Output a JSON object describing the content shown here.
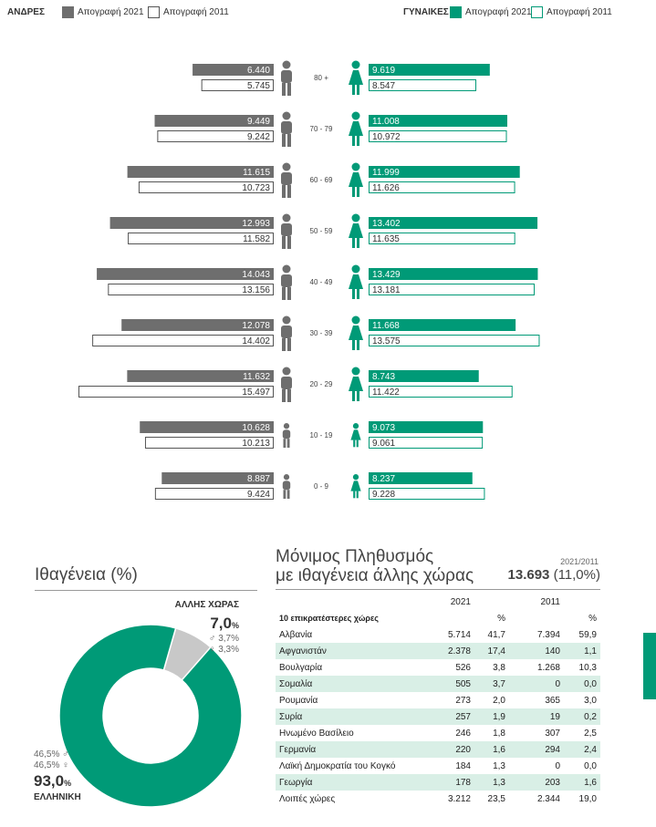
{
  "legend": {
    "men_label": "ΑΝΔΡΕΣ",
    "women_label": "ΓΥΝΑΙΚΕΣ",
    "census_2021": "Απογραφή 2021",
    "census_2011": "Απογραφή 2011",
    "icon": "square-swatch"
  },
  "colors": {
    "men_2021": "#6e6e6e",
    "women_2021": "#009a77",
    "outline_2011_men": "#555555",
    "outline_2011_women": "#009a77",
    "other_slice": "#c8c8c8",
    "table_shade": "#d9efe6",
    "side_tab": "#009a77"
  },
  "chart_data": [
    {
      "type": "bar",
      "orientation": "horizontal-pyramid",
      "categories": [
        "80 +",
        "70 - 79",
        "60 - 69",
        "50 - 59",
        "40 - 49",
        "30 - 39",
        "20 - 29",
        "10 - 19",
        "0 - 9"
      ],
      "series": [
        {
          "name": "ΑΝΔΡΕΣ Απογραφή 2021",
          "values": [
            6440,
            9449,
            11615,
            12993,
            14043,
            12078,
            11632,
            10628,
            8887
          ],
          "labels": [
            "6.440",
            "9.449",
            "11.615",
            "12.993",
            "14.043",
            "12.078",
            "11.632",
            "10.628",
            "8.887"
          ]
        },
        {
          "name": "ΑΝΔΡΕΣ Απογραφή 2011",
          "values": [
            5745,
            9242,
            10723,
            11582,
            13156,
            14402,
            15497,
            10213,
            9424
          ],
          "labels": [
            "5.745",
            "9.242",
            "10.723",
            "11.582",
            "13.156",
            "14.402",
            "15.497",
            "10.213",
            "9.424"
          ]
        },
        {
          "name": "ΓΥΝΑΙΚΕΣ Απογραφή 2021",
          "values": [
            9619,
            11008,
            11999,
            13402,
            13429,
            11668,
            8743,
            9073,
            8237
          ],
          "labels": [
            "9.619",
            "11.008",
            "11.999",
            "13.402",
            "13.429",
            "11.668",
            "8.743",
            "9.073",
            "8.237"
          ]
        },
        {
          "name": "ΓΥΝΑΙΚΕΣ Απογραφή 2011",
          "values": [
            8547,
            10972,
            11626,
            11635,
            13181,
            13575,
            11422,
            9061,
            9228
          ],
          "labels": [
            "8.547",
            "10.972",
            "11.626",
            "11.635",
            "13.181",
            "13.575",
            "11.422",
            "9.061",
            "9.228"
          ]
        }
      ],
      "icons": [
        "elderly-man-icon",
        "man-icon",
        "woman-icon",
        "child-icon",
        "baby-icon"
      ]
    },
    {
      "type": "pie",
      "title": "Ιθαγένεια (%)",
      "donut": true,
      "slices": [
        {
          "name": "ΕΛΛΗΝΙΚΗ",
          "value": 93.0,
          "label": "93,0",
          "male_label": "46,5% ♂",
          "female_label": "46,5% ♀"
        },
        {
          "name": "ΑΛΛΗΣ ΧΩΡΑΣ",
          "value": 7.0,
          "label": "7,0",
          "male_label": "♂ 3,7%",
          "female_label": "♀ 3,3%"
        }
      ],
      "percent_sign": "%"
    },
    {
      "type": "table",
      "title_line1": "Μόνιμος Πληθυσμός",
      "title_line2": "με ιθαγένεια άλλης χώρας",
      "period": "2021/2011",
      "total": "13.693",
      "total_pct": "(11,0%)",
      "header_2021": "2021",
      "header_2011": "2011",
      "header_pct": "%",
      "subheader": "10 επικρατέστερες χώρες",
      "rows": [
        {
          "country": "Αλβανία",
          "v2021": "5.714",
          "p2021": "41,7",
          "v2011": "7.394",
          "p2011": "59,9"
        },
        {
          "country": "Αφγανιστάν",
          "v2021": "2.378",
          "p2021": "17,4",
          "v2011": "140",
          "p2011": "1,1"
        },
        {
          "country": "Βουλγαρία",
          "v2021": "526",
          "p2021": "3,8",
          "v2011": "1.268",
          "p2011": "10,3"
        },
        {
          "country": "Σομαλία",
          "v2021": "505",
          "p2021": "3,7",
          "v2011": "0",
          "p2011": "0,0"
        },
        {
          "country": "Ρουμανία",
          "v2021": "273",
          "p2021": "2,0",
          "v2011": "365",
          "p2011": "3,0"
        },
        {
          "country": "Συρία",
          "v2021": "257",
          "p2021": "1,9",
          "v2011": "19",
          "p2011": "0,2"
        },
        {
          "country": "Ηνωμένο Βασίλειο",
          "v2021": "246",
          "p2021": "1,8",
          "v2011": "307",
          "p2011": "2,5"
        },
        {
          "country": "Γερμανία",
          "v2021": "220",
          "p2021": "1,6",
          "v2011": "294",
          "p2011": "2,4"
        },
        {
          "country": "Λαϊκή Δημοκρατία του Κογκό",
          "v2021": "184",
          "p2021": "1,3",
          "v2011": "0",
          "p2011": "0,0"
        },
        {
          "country": "Γεωργία",
          "v2021": "178",
          "p2021": "1,3",
          "v2011": "203",
          "p2011": "1,6"
        },
        {
          "country": "Λοιπές χώρες",
          "v2021": "3.212",
          "p2021": "23,5",
          "v2011": "2.344",
          "p2011": "19,0"
        }
      ]
    }
  ]
}
